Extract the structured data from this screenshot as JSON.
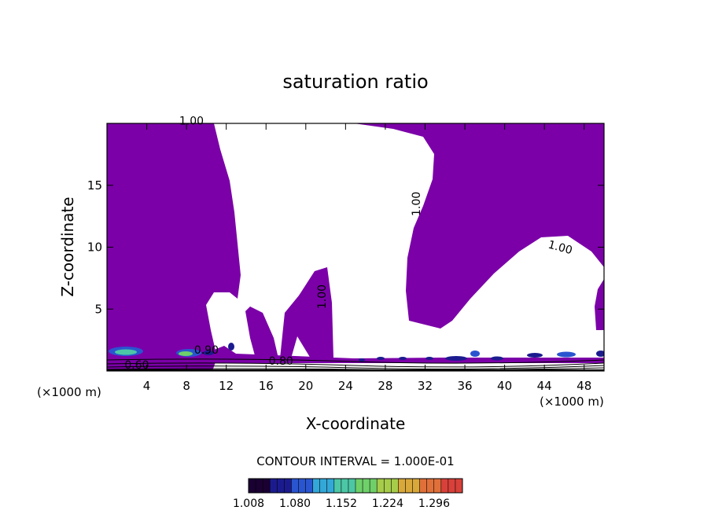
{
  "chart_data": {
    "type": "heatmap",
    "title": "saturation ratio",
    "xlabel": "X-coordinate",
    "ylabel": "Z-coordinate",
    "x_unit_left": "(×1000 m)",
    "x_unit_right": "(×1000 m)",
    "xlim": [
      0,
      50
    ],
    "ylim": [
      0,
      20
    ],
    "x_ticks": [
      4,
      8,
      12,
      16,
      20,
      24,
      28,
      32,
      36,
      40,
      44,
      48
    ],
    "y_ticks": [
      5,
      10,
      15
    ],
    "fill_color": "#7b00a8",
    "contour_labels": [
      {
        "text": "1.00",
        "x": 8.5,
        "y": 19.9,
        "rotate": 0
      },
      {
        "text": "1.00",
        "x": 31.5,
        "y": 13.5,
        "rotate": -90
      },
      {
        "text": "1.00",
        "x": 45.5,
        "y": 9.7,
        "rotate": 15
      },
      {
        "text": "1.00",
        "x": 22.0,
        "y": 6.0,
        "rotate": -90
      },
      {
        "text": "0.80",
        "x": 17.5,
        "y": 0.5,
        "rotate": 0
      },
      {
        "text": "0.60",
        "x": 3.0,
        "y": 0.2,
        "rotate": 0
      },
      {
        "text": "0.90",
        "x": 10.0,
        "y": 1.4,
        "rotate": 0
      }
    ],
    "contour_interval_text": "CONTOUR INTERVAL = 1.000E-01",
    "colorbar": {
      "min": 1.008,
      "max": 1.34,
      "tick_labels": [
        "1.008",
        "1.080",
        "1.152",
        "1.224",
        "1.296"
      ],
      "tick_values": [
        1.008,
        1.08,
        1.152,
        1.224,
        1.296
      ],
      "colors": [
        "#1a0033",
        "#1b1b8f",
        "#2a55d0",
        "#33a8d8",
        "#4cc7a6",
        "#6fd06a",
        "#a6cc4a",
        "#d9a83a",
        "#e0703a",
        "#d8403a"
      ]
    }
  }
}
